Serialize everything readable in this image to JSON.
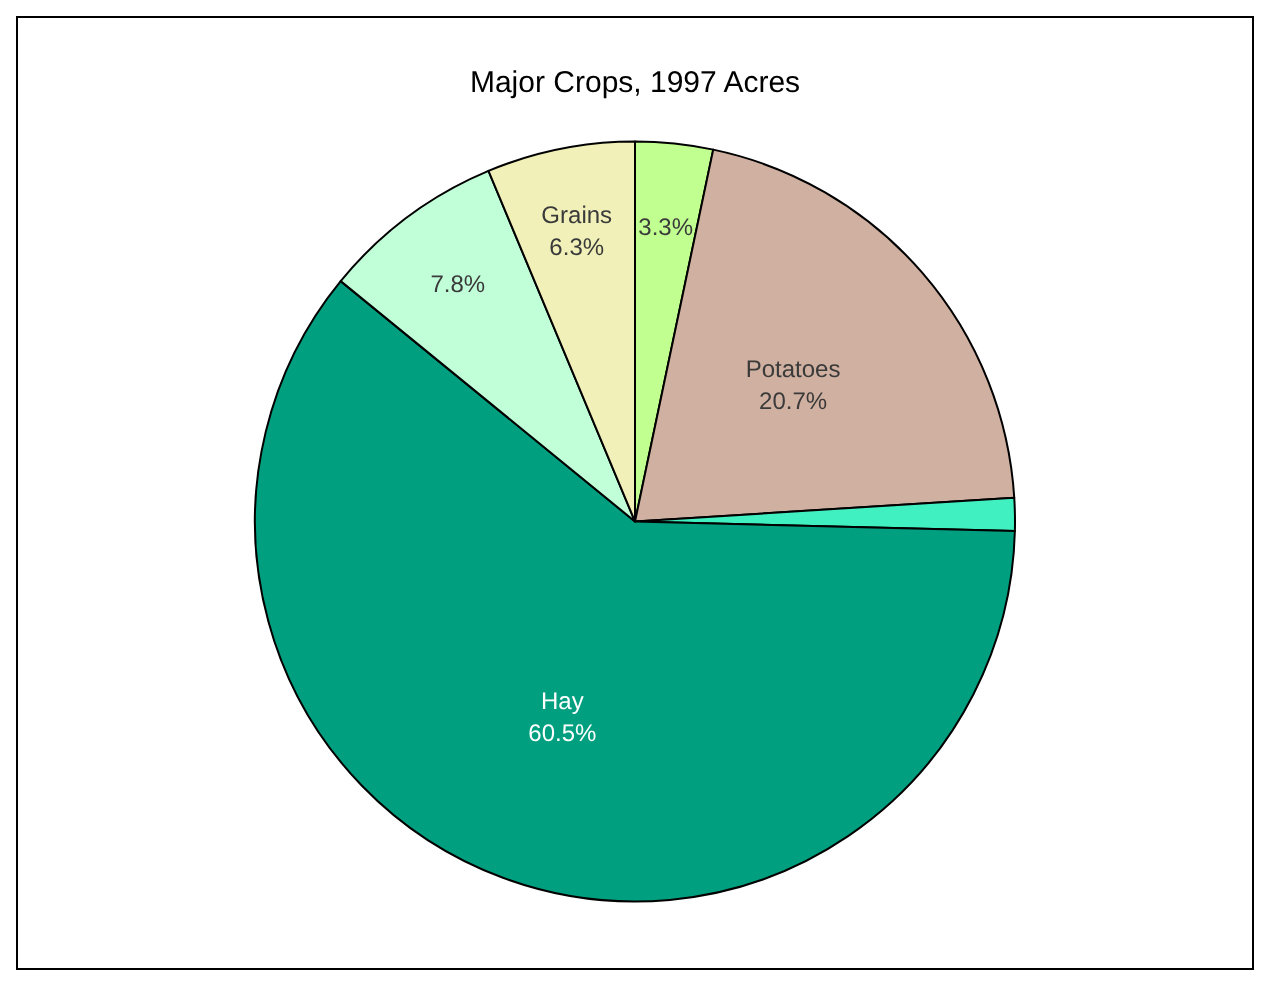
{
  "chart_data": {
    "type": "pie",
    "title": "Major Crops, 1997 Acres",
    "categories": [
      null,
      "Potatoes",
      null,
      "Hay",
      null,
      "Grains"
    ],
    "values": [
      3.3,
      20.7,
      1.4,
      60.5,
      7.8,
      6.3
    ],
    "value_labels": [
      "3.3%",
      "20.7%",
      null,
      "60.5%",
      "7.8%",
      "6.3%"
    ],
    "colors": [
      "#c0ff90",
      "#d0b0a0",
      "#40f0c0",
      "#009f80",
      "#c0ffd8",
      "#f0f0b8"
    ],
    "legend": false
  }
}
